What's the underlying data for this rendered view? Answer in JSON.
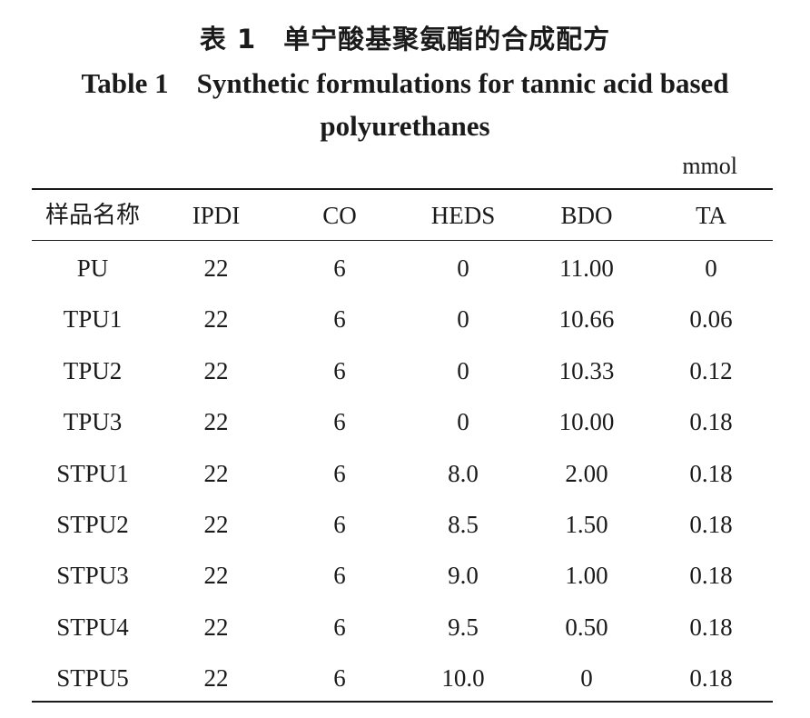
{
  "table": {
    "title_cn": "表 1　单宁酸基聚氨酯的合成配方",
    "title_en": "Table 1　Synthetic formulations for tannic acid based polyurethanes",
    "unit": "mmol",
    "columns": [
      "样品名称",
      "IPDI",
      "CO",
      "HEDS",
      "BDO",
      "TA"
    ],
    "rows": [
      [
        "PU",
        "22",
        "6",
        "0",
        "11.00",
        "0"
      ],
      [
        "TPU1",
        "22",
        "6",
        "0",
        "10.66",
        "0.06"
      ],
      [
        "TPU2",
        "22",
        "6",
        "0",
        "10.33",
        "0.12"
      ],
      [
        "TPU3",
        "22",
        "6",
        "0",
        "10.00",
        "0.18"
      ],
      [
        "STPU1",
        "22",
        "6",
        "8.0",
        "2.00",
        "0.18"
      ],
      [
        "STPU2",
        "22",
        "6",
        "8.5",
        "1.50",
        "0.18"
      ],
      [
        "STPU3",
        "22",
        "6",
        "9.0",
        "1.00",
        "0.18"
      ],
      [
        "STPU4",
        "22",
        "6",
        "9.5",
        "0.50",
        "0.18"
      ],
      [
        "STPU5",
        "22",
        "6",
        "10.0",
        "0",
        "0.18"
      ]
    ]
  }
}
